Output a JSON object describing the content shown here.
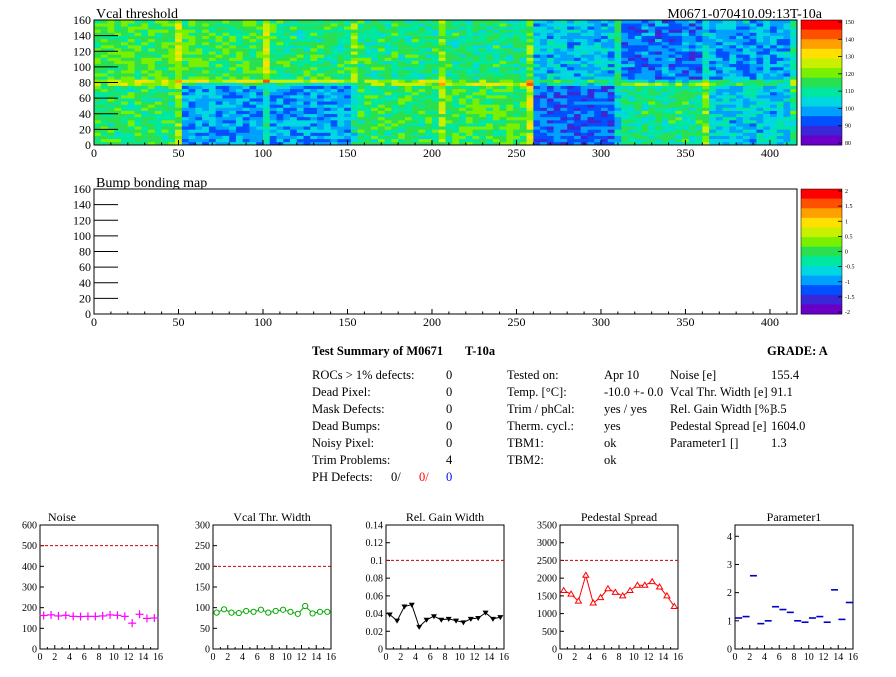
{
  "header": {
    "map1_title": "Vcal threshold",
    "module_id": "M0671-070410.09:13T-10a",
    "map2_title": "Bump bonding map"
  },
  "summary": {
    "title": "Test Summary of M0671",
    "temp": "T-10a",
    "grade": "GRADE:  A",
    "defects": [
      {
        "label": "ROCs > 1% defects:",
        "value": "0"
      },
      {
        "label": "Dead Pixel:",
        "value": "0"
      },
      {
        "label": "Mask Defects:",
        "value": "0"
      },
      {
        "label": "Dead Bumps:",
        "value": "0"
      },
      {
        "label": "Noisy Pixel:",
        "value": "0"
      },
      {
        "label": "Trim Problems:",
        "value": "4"
      }
    ],
    "ph_label": "PH Defects:",
    "ph_values": [
      {
        "value": "0/",
        "color": "#000000"
      },
      {
        "value": "0/",
        "color": "#ff0000"
      },
      {
        "value": "0",
        "color": "#0000ff"
      }
    ],
    "conditions": [
      {
        "label": "Tested on:",
        "value": "Apr 10"
      },
      {
        "label": "Temp. [°C]:",
        "value": "-10.0 +- 0.0"
      },
      {
        "label": "Trim / phCal:",
        "value": "yes / yes"
      },
      {
        "label": "Therm. cycl.:",
        "value": "yes"
      },
      {
        "label": "TBM1:",
        "value": "ok"
      },
      {
        "label": "TBM2:",
        "value": "ok"
      }
    ],
    "results": [
      {
        "label": "Noise [e]",
        "value": "155.4"
      },
      {
        "label": "Vcal Thr. Width [e]",
        "value": "91.1"
      },
      {
        "label": "Rel. Gain Width [%]",
        "value": "3.5"
      },
      {
        "label": "Pedestal Spread [e]",
        "value": "1604.0"
      },
      {
        "label": "Parameter1 []",
        "value": "1.3"
      }
    ]
  },
  "chart_data": [
    {
      "type": "heatmap",
      "title": "Vcal threshold",
      "xlim": [
        0,
        416
      ],
      "ylim": [
        0,
        160
      ],
      "x_ticks": [
        0,
        50,
        100,
        150,
        200,
        250,
        300,
        350,
        400
      ],
      "y_ticks": [
        0,
        20,
        40,
        60,
        80,
        100,
        120,
        140,
        160
      ],
      "z_range": [
        80,
        150
      ],
      "z_ticks": [
        80,
        90,
        100,
        110,
        120,
        130,
        140,
        150
      ],
      "chips_top_mean": [
        116,
        116,
        113,
        112,
        111,
        102,
        96,
        100,
        107
      ],
      "chips_bottom_mean": [
        113,
        99,
        99,
        113,
        115,
        94,
        111,
        103,
        111
      ],
      "palette": [
        "#6a00c8",
        "#3a28d8",
        "#0050ff",
        "#00a0ff",
        "#00d8e0",
        "#00e8a0",
        "#28e050",
        "#78f000",
        "#c8f000",
        "#ffe000",
        "#ffa000",
        "#ff5000",
        "#ff0000"
      ]
    },
    {
      "type": "heatmap",
      "title": "Bump bonding map",
      "xlim": [
        0,
        416
      ],
      "ylim": [
        0,
        160
      ],
      "x_ticks": [
        0,
        50,
        100,
        150,
        200,
        250,
        300,
        350,
        400
      ],
      "y_ticks": [
        0,
        20,
        40,
        60,
        80,
        100,
        120,
        140,
        160
      ],
      "z_range": [
        -2,
        2
      ],
      "z_ticks": [
        "2",
        "1.5",
        "1",
        "0.5",
        "0",
        "-0.5",
        "-1",
        "-1.5",
        "-2"
      ],
      "values": []
    },
    {
      "type": "scatter",
      "title": "Noise",
      "x": [
        0,
        1,
        2,
        3,
        4,
        5,
        6,
        7,
        8,
        9,
        10,
        11,
        12,
        13,
        14,
        15
      ],
      "y": [
        162,
        165,
        160,
        163,
        158,
        157,
        158,
        158,
        160,
        165,
        163,
        158,
        125,
        168,
        148,
        150
      ],
      "xlim": [
        0,
        16
      ],
      "ylim": [
        0,
        600
      ],
      "reference_line": 500,
      "y_ticks": [
        "0",
        "100",
        "200",
        "300",
        "400",
        "500",
        "600"
      ],
      "x_ticks": [
        "0",
        "2",
        "4",
        "6",
        "8",
        "10",
        "12",
        "14",
        "16"
      ],
      "color": "#ff00ff",
      "marker": "plus",
      "connect": false
    },
    {
      "type": "line",
      "title": "Vcal Thr. Width",
      "x": [
        0,
        1,
        2,
        3,
        4,
        5,
        6,
        7,
        8,
        9,
        10,
        11,
        12,
        13,
        14,
        15
      ],
      "y": [
        88,
        96,
        88,
        87,
        92,
        90,
        95,
        88,
        92,
        95,
        90,
        85,
        104,
        86,
        90,
        90
      ],
      "xlim": [
        0,
        16
      ],
      "ylim": [
        0,
        300
      ],
      "reference_line": 200,
      "y_ticks": [
        "0",
        "50",
        "100",
        "150",
        "200",
        "250",
        "300"
      ],
      "x_ticks": [
        "0",
        "2",
        "4",
        "6",
        "8",
        "10",
        "12",
        "14",
        "16"
      ],
      "color": "#00aa00",
      "marker": "circle",
      "connect": true
    },
    {
      "type": "line",
      "title": "Rel. Gain Width",
      "x": [
        0,
        1,
        2,
        3,
        4,
        5,
        6,
        7,
        8,
        9,
        10,
        11,
        12,
        13,
        14,
        15
      ],
      "y": [
        0.039,
        0.032,
        0.048,
        0.05,
        0.025,
        0.033,
        0.037,
        0.033,
        0.034,
        0.032,
        0.03,
        0.034,
        0.035,
        0.041,
        0.034,
        0.036
      ],
      "xlim": [
        0,
        16
      ],
      "ylim": [
        0,
        0.14
      ],
      "reference_line": 0.1,
      "y_ticks": [
        "0",
        "0.02",
        "0.04",
        "0.06",
        "0.08",
        "0.1",
        "0.12",
        "0.14"
      ],
      "x_ticks": [
        "0",
        "2",
        "4",
        "6",
        "8",
        "10",
        "12",
        "14",
        "16"
      ],
      "color": "#000000",
      "marker": "triangle-down",
      "connect": true
    },
    {
      "type": "line",
      "title": "Pedestal Spread",
      "x": [
        0,
        1,
        2,
        3,
        4,
        5,
        6,
        7,
        8,
        9,
        10,
        11,
        12,
        13,
        14,
        15
      ],
      "y": [
        1650,
        1550,
        1350,
        2080,
        1300,
        1450,
        1700,
        1600,
        1500,
        1650,
        1800,
        1800,
        1900,
        1750,
        1500,
        1200
      ],
      "xlim": [
        0,
        16
      ],
      "ylim": [
        0,
        3500
      ],
      "reference_line": 2500,
      "y_ticks": [
        "0",
        "500",
        "1000",
        "1500",
        "2000",
        "2500",
        "3000",
        "3500"
      ],
      "x_ticks": [
        "0",
        "2",
        "4",
        "6",
        "8",
        "10",
        "12",
        "14",
        "16"
      ],
      "color": "#ff0000",
      "marker": "triangle-up-open",
      "connect": true
    },
    {
      "type": "scatter",
      "title": "Parameter1",
      "x": [
        0,
        1,
        2,
        3,
        4,
        5,
        6,
        7,
        8,
        9,
        10,
        11,
        12,
        13,
        14,
        15
      ],
      "y": [
        1.1,
        1.15,
        2.6,
        0.9,
        1.0,
        1.5,
        1.4,
        1.3,
        1.0,
        0.95,
        1.1,
        1.15,
        0.95,
        2.1,
        1.05,
        1.65
      ],
      "xlim": [
        0,
        16
      ],
      "ylim": [
        0,
        4.4
      ],
      "y_ticks": [
        "0",
        "1",
        "2",
        "3",
        "4"
      ],
      "x_ticks": [
        "0",
        "2",
        "4",
        "6",
        "8",
        "10",
        "12",
        "14",
        "16"
      ],
      "color": "#0000cc",
      "marker": "dash",
      "connect": false
    }
  ]
}
